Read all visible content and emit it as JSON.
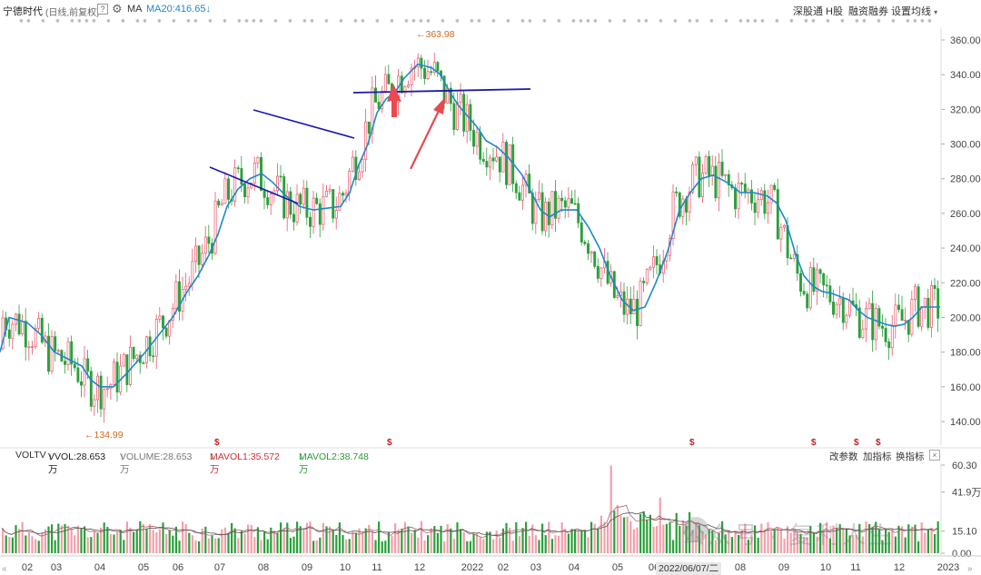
{
  "header": {
    "stock_name": "宁德时代",
    "period_label": "(日线,前复权)",
    "help_label": "?",
    "indicator_label": "MA",
    "ma20_label": "MA20:416.65",
    "ma20_arrow": "↓",
    "right_buttons": [
      "深股通",
      "H股",
      "融资融券",
      "设置均线"
    ],
    "caret": "▾"
  },
  "price_axis": {
    "ticks": [
      "360.00",
      "340.00",
      "320.00",
      "300.00",
      "280.00",
      "260.00",
      "240.00",
      "220.00",
      "200.00",
      "180.00",
      "160.00",
      "140.00"
    ],
    "values": [
      360,
      340,
      320,
      300,
      280,
      260,
      240,
      220,
      200,
      180,
      160,
      140
    ]
  },
  "annotations": {
    "high_label": "363.98",
    "low_label": "134.99",
    "high_arrow": "←",
    "low_arrow": "←",
    "dividend_marker": "$"
  },
  "volume_panel": {
    "label_voltv": "VOLTV",
    "vvol": "VVOL:28.653万",
    "vvol_arrow": "↓",
    "volume": "VOLUME:28.653万",
    "volume_arrow": "↓",
    "mavol1": "MAVOL1:35.572万",
    "mavol1_arrow": "↓",
    "mavol2": "MAVOL2:38.748万",
    "mavol2_arrow": "↓",
    "buttons": [
      "改参数",
      "加指标",
      "换指标"
    ],
    "close_label": "×",
    "axis_ticks": [
      "60.30",
      "41.9万",
      "15.10",
      "0.00"
    ],
    "axis_values": [
      60.3,
      41.9,
      15.1,
      0
    ]
  },
  "x_axis": {
    "labels": [
      "02",
      "03",
      "04",
      "05",
      "06",
      "07",
      "08",
      "09",
      "10",
      "11",
      "12",
      "2022",
      "02",
      "03",
      "04",
      "05",
      "06",
      "07",
      "08",
      "09",
      "10",
      "11",
      "12",
      "2023"
    ],
    "date_tip": "2022/06/07/二"
  },
  "nav": {
    "left": "«",
    "right": "»"
  },
  "watermark": "公众号 · 复利人生",
  "colors": {
    "up": "#e8566a",
    "down": "#2aa03a",
    "ma20": "#1e88c8",
    "trendline": "#1a1aa8",
    "arrow": "#e84a50",
    "dividend": "#c81e1e",
    "high_low": "#d2691e",
    "mavol1": "#c8323c",
    "mavol2": "#2a9a3a"
  },
  "ma20_series": [
    [
      0,
      180
    ],
    [
      10,
      200
    ],
    [
      30,
      197
    ],
    [
      45,
      190
    ],
    [
      60,
      180
    ],
    [
      75,
      176
    ],
    [
      90,
      172
    ],
    [
      100,
      164
    ],
    [
      110,
      160
    ],
    [
      125,
      160
    ],
    [
      140,
      168
    ],
    [
      160,
      180
    ],
    [
      175,
      190
    ],
    [
      190,
      200
    ],
    [
      205,
      214
    ],
    [
      218,
      224
    ],
    [
      230,
      236
    ],
    [
      240,
      248
    ],
    [
      250,
      264
    ],
    [
      262,
      274
    ],
    [
      275,
      280
    ],
    [
      288,
      283
    ],
    [
      300,
      278
    ],
    [
      315,
      270
    ],
    [
      330,
      264
    ],
    [
      345,
      262
    ],
    [
      360,
      263
    ],
    [
      375,
      264
    ],
    [
      385,
      272
    ],
    [
      395,
      288
    ],
    [
      405,
      300
    ],
    [
      415,
      318
    ],
    [
      425,
      326
    ],
    [
      435,
      330
    ],
    [
      445,
      338
    ],
    [
      460,
      346
    ],
    [
      475,
      344
    ],
    [
      485,
      340
    ],
    [
      495,
      330
    ],
    [
      505,
      322
    ],
    [
      515,
      316
    ],
    [
      525,
      310
    ],
    [
      535,
      302
    ],
    [
      548,
      298
    ],
    [
      560,
      292
    ],
    [
      575,
      282
    ],
    [
      585,
      272
    ],
    [
      595,
      262
    ],
    [
      605,
      258
    ],
    [
      618,
      262
    ],
    [
      635,
      262
    ],
    [
      648,
      252
    ],
    [
      660,
      240
    ],
    [
      672,
      224
    ],
    [
      685,
      210
    ],
    [
      697,
      204
    ],
    [
      710,
      206
    ],
    [
      722,
      220
    ],
    [
      735,
      238
    ],
    [
      748,
      262
    ],
    [
      760,
      272
    ],
    [
      772,
      280
    ],
    [
      785,
      282
    ],
    [
      800,
      278
    ],
    [
      815,
      272
    ],
    [
      830,
      272
    ],
    [
      845,
      270
    ],
    [
      855,
      266
    ],
    [
      865,
      256
    ],
    [
      875,
      238
    ],
    [
      885,
      224
    ],
    [
      895,
      218
    ],
    [
      905,
      215
    ],
    [
      915,
      214
    ],
    [
      925,
      212
    ],
    [
      935,
      210
    ],
    [
      945,
      204
    ],
    [
      955,
      200
    ],
    [
      965,
      198
    ],
    [
      975,
      196
    ],
    [
      985,
      195
    ],
    [
      995,
      196
    ],
    [
      1005,
      200
    ],
    [
      1015,
      206
    ],
    [
      1025,
      206
    ],
    [
      1035,
      206
    ]
  ]
}
